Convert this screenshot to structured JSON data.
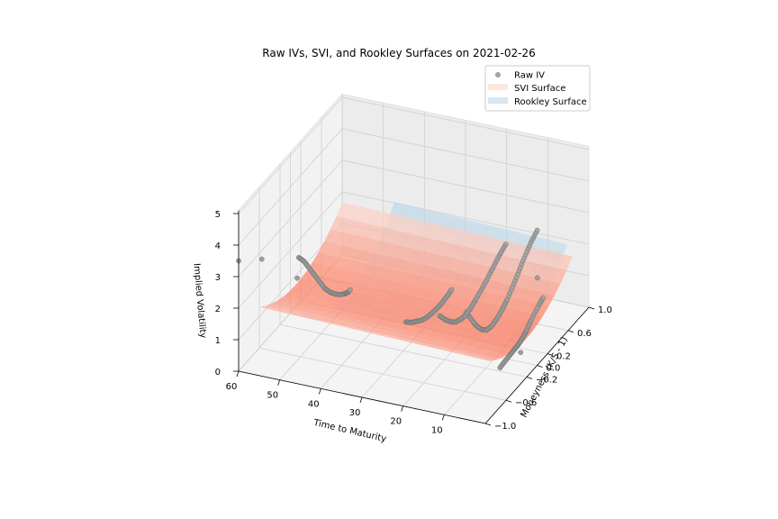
{
  "chart_data": {
    "type": "scatter",
    "title": "Raw IVs, SVI, and Rookley Surfaces on 2021-02-26",
    "xlabel": "Moneyness (K/S - 1)",
    "ylabel": "Time to Maturity",
    "zlabel": "Implied Volatility",
    "xlim": [
      -1.0,
      1.0
    ],
    "ylim": [
      0,
      60
    ],
    "zlim": [
      0,
      5
    ],
    "x_ticks": [
      "−1.0",
      "−0.6",
      "−0.2",
      "0.0",
      "0.2",
      "0.6",
      "1.0"
    ],
    "x_tick_values": [
      -1.0,
      -0.6,
      -0.2,
      0.0,
      0.2,
      0.6,
      1.0
    ],
    "y_ticks": [
      "10",
      "20",
      "30",
      "40",
      "50",
      "60"
    ],
    "y_tick_values": [
      10,
      20,
      30,
      40,
      50,
      60
    ],
    "z_ticks": [
      "0",
      "1",
      "2",
      "3",
      "4",
      "5"
    ],
    "z_tick_values": [
      0,
      1,
      2,
      3,
      4,
      5
    ],
    "legend_position": "top-right",
    "legend": [
      {
        "label": "Raw IV",
        "color": "#808080",
        "kind": "marker"
      },
      {
        "label": "SVI Surface",
        "color": "#fcbba1",
        "kind": "patch"
      },
      {
        "label": "Rookley Surface",
        "color": "#c6dbef",
        "kind": "patch"
      }
    ],
    "grid": true,
    "raw_iv_series": [
      {
        "maturity": 4,
        "moneyness": [
          -0.4,
          -0.3,
          -0.2,
          -0.12,
          -0.06,
          0.0,
          0.06,
          0.12,
          0.2,
          0.35,
          0.45
        ],
        "iv": [
          0.55,
          0.58,
          0.6,
          0.62,
          0.63,
          0.66,
          0.72,
          0.8,
          0.95,
          1.15,
          1.25
        ]
      },
      {
        "maturity": 11,
        "moneyness": [
          -0.5,
          -0.4,
          -0.3,
          -0.2,
          -0.1,
          0.0,
          0.1,
          0.2,
          0.3,
          0.45,
          0.6,
          0.75,
          0.9
        ],
        "iv": [
          2.3,
          1.9,
          1.5,
          1.2,
          1.0,
          0.95,
          1.0,
          1.1,
          1.25,
          1.55,
          1.9,
          2.2,
          2.4
        ]
      },
      {
        "maturity": 18,
        "moneyness": [
          -0.45,
          -0.35,
          -0.25,
          -0.15,
          -0.05,
          0.05,
          0.15,
          0.25,
          0.4,
          0.55,
          0.7,
          0.85
        ],
        "iv": [
          1.9,
          1.6,
          1.35,
          1.15,
          1.05,
          1.0,
          1.05,
          1.15,
          1.3,
          1.5,
          1.7,
          1.85
        ]
      },
      {
        "maturity": 25,
        "moneyness": [
          -0.55,
          -0.45,
          -0.35,
          -0.25,
          -0.15,
          -0.05,
          0.05,
          0.15,
          0.25,
          0.35
        ],
        "iv": [
          1.7,
          1.5,
          1.35,
          1.2,
          1.1,
          1.05,
          1.02,
          1.02,
          1.05,
          1.1
        ]
      },
      {
        "maturity": 46,
        "moneyness": [
          -0.95,
          -0.85,
          -0.75,
          -0.65,
          -0.55,
          -0.45,
          -0.35,
          -0.25,
          -0.15,
          -0.05,
          0.0,
          0.05
        ],
        "iv": [
          3.9,
          3.6,
          3.2,
          2.8,
          2.4,
          2.0,
          1.7,
          1.45,
          1.25,
          1.1,
          1.05,
          1.05
        ]
      }
    ],
    "raw_iv_outliers": [
      {
        "maturity": 60,
        "moneyness": -1.0,
        "iv": 3.5
      },
      {
        "maturity": 55,
        "moneyness": -0.95,
        "iv": 3.6
      },
      {
        "maturity": 46,
        "moneyness": -0.98,
        "iv": 3.3
      },
      {
        "maturity": 5,
        "moneyness": 0.4,
        "iv": 1.9
      },
      {
        "maturity": 4,
        "moneyness": 0.0,
        "iv": 0.3
      }
    ],
    "svi_surface": {
      "maturity": [
        4,
        60
      ],
      "moneyness": [
        -0.6,
        1.0
      ],
      "model": "iv = base + slope * m^2 + skew * m",
      "base": 0.55,
      "curve": 1.2,
      "skew": -0.25,
      "term_slope": 0.003
    },
    "rookley_surface": {
      "maturity": [
        4,
        46
      ],
      "moneyness": [
        -0.4,
        0.9
      ],
      "base": 0.95,
      "curve": 1.5,
      "skew": -0.1
    }
  }
}
